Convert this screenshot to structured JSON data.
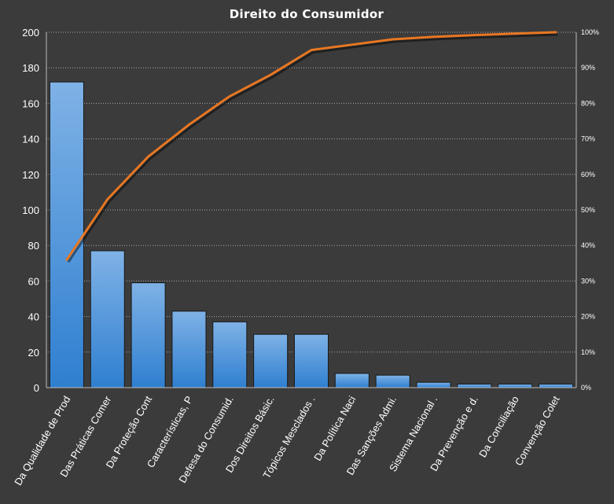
{
  "chart_data": {
    "type": "bar",
    "title": "Direito  do Consumidor",
    "categories": [
      "Da Qualidade de Prod",
      "Das Práticas Comer",
      "Da Proteção Cont",
      "Características, P",
      "Defesa do Consumid.",
      "Dos Direitos Básic.",
      "Tópicos Mesclados .",
      "Da Política Naci",
      "Das Sanções Admi.",
      "Sistema Nacional .",
      "Da Prevenção e d.",
      "Da Conciliação",
      "Convenção Colet"
    ],
    "series": [
      {
        "type": "bar",
        "axis": "left",
        "values": [
          172,
          77,
          59,
          43,
          37,
          30,
          30,
          8,
          7,
          3,
          2,
          2,
          2
        ]
      },
      {
        "type": "line",
        "axis": "right",
        "values": [
          36,
          53,
          65,
          74,
          82,
          88,
          95,
          96.5,
          98,
          98.7,
          99.2,
          99.6,
          100
        ]
      }
    ],
    "ylim": [
      0,
      200
    ],
    "yticks": [
      "0",
      "20",
      "40",
      "60",
      "80",
      "100",
      "120",
      "140",
      "160",
      "180",
      "200"
    ],
    "y2lim": [
      0,
      100
    ],
    "y2ticks": [
      "0%",
      "10%",
      "20%",
      "30%",
      "40%",
      "50%",
      "60%",
      "70%",
      "80%",
      "90%",
      "100%"
    ],
    "grid": true,
    "legend": "none",
    "colors": {
      "background": "#3b3b3b",
      "bar_top": "#7fb2e6",
      "bar_bottom": "#2f7fd0",
      "bar_stroke": "#1a1a1a",
      "line": "#e87722",
      "line_shadow": "#000000"
    }
  }
}
